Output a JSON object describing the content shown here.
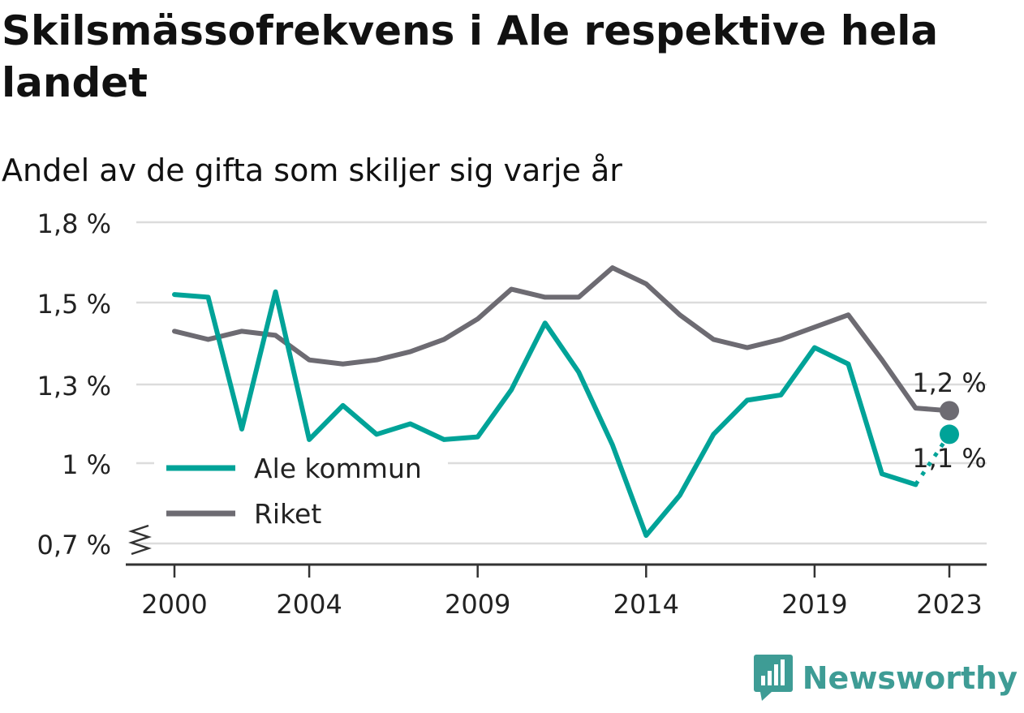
{
  "header": {
    "title": "Skilsmässofrekvens i Ale respektive hela landet",
    "subtitle": "Andel av de gifta som skiljer sig varje år"
  },
  "brand": {
    "name": "Newsworthy",
    "color": "#3e9c95",
    "icon": "bar-chart-speech-bubble-icon"
  },
  "chart_data": {
    "type": "line",
    "title": "Skilsmässofrekvens i Ale respektive hela landet",
    "subtitle": "Andel av de gifta som skiljer sig varje år",
    "xlabel": "",
    "ylabel": "",
    "x": [
      2000,
      2001,
      2002,
      2003,
      2004,
      2005,
      2006,
      2007,
      2008,
      2009,
      2010,
      2011,
      2012,
      2013,
      2014,
      2015,
      2016,
      2017,
      2018,
      2019,
      2020,
      2021,
      2022,
      2023
    ],
    "x_ticks": [
      2000,
      2004,
      2009,
      2014,
      2019,
      2023
    ],
    "y_ticks": [
      0.7,
      1.0,
      1.3,
      1.5,
      1.8
    ],
    "y_tick_labels": [
      "0,7 %",
      "1 %",
      "1,3 %",
      "1,5 %",
      "1,8 %"
    ],
    "ylim": [
      0.7,
      1.8
    ],
    "y_axis_break": true,
    "grid": true,
    "legend_position": "bottom-left",
    "series": [
      {
        "name": "Ale kommun",
        "color": "#00a398",
        "values": [
          1.53,
          1.52,
          1.13,
          1.54,
          1.09,
          1.22,
          1.11,
          1.15,
          1.09,
          1.1,
          1.28,
          1.45,
          1.33,
          1.07,
          0.73,
          0.88,
          1.11,
          1.24,
          1.26,
          1.39,
          1.35,
          0.96,
          0.92,
          1.11
        ],
        "end_label": "1,1 %"
      },
      {
        "name": "Riket",
        "color": "#6d6b72",
        "values": [
          1.43,
          1.41,
          1.43,
          1.42,
          1.36,
          1.35,
          1.36,
          1.38,
          1.41,
          1.46,
          1.55,
          1.52,
          1.52,
          1.63,
          1.57,
          1.47,
          1.41,
          1.39,
          1.41,
          1.44,
          1.47,
          1.36,
          1.21,
          1.2
        ],
        "end_label": "1,2 %"
      }
    ]
  }
}
